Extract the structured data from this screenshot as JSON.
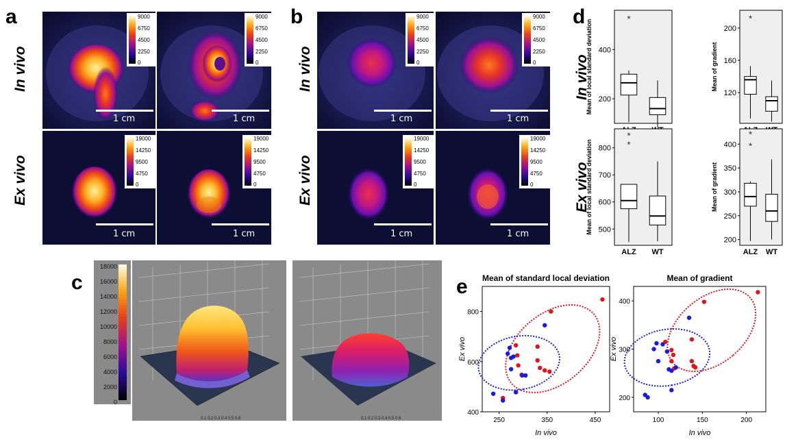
{
  "panel_labels": {
    "a": "a",
    "b": "b",
    "c": "c",
    "d": "d",
    "e": "e"
  },
  "row_labels": {
    "in_vivo": "In vivo",
    "ex_vivo": "Ex vivo"
  },
  "scale_bar": "1 cm",
  "colorbar_in_vivo": [
    "9000",
    "6750",
    "4500",
    "2250",
    "0"
  ],
  "colorbar_ex_vivo": [
    "19000",
    "14250",
    "9500",
    "4750",
    "0"
  ],
  "colorbar_3d": [
    "18000",
    "16000",
    "14000",
    "12000",
    "10000",
    "8000",
    "6000",
    "4000",
    "2000",
    "0"
  ],
  "colors": {
    "alz": "#e0141c",
    "wt": "#1a1ae0",
    "panel_bg": "#838383"
  },
  "chart_data": [
    {
      "type": "box",
      "panel": "d",
      "row": "In vivo",
      "ylabel": "Mean of local standard deviation",
      "categories": [
        "ALZ",
        "WT"
      ],
      "ylim": [
        100,
        560
      ],
      "yticks": [
        200,
        400
      ],
      "boxes": [
        {
          "name": "ALZ",
          "whisker_low": 105,
          "q1": 215,
          "median": 265,
          "q3": 300,
          "whisker_high": 315,
          "outliers": [
            530
          ]
        },
        {
          "name": "WT",
          "whisker_low": 85,
          "q1": 135,
          "median": 160,
          "q3": 205,
          "whisker_high": 275,
          "outliers": []
        }
      ]
    },
    {
      "type": "box",
      "panel": "d",
      "row": "In vivo",
      "ylabel": "Mean of gradient",
      "categories": [
        "ALZ",
        "WT"
      ],
      "ylim": [
        82,
        222
      ],
      "yticks": [
        120,
        160,
        200
      ],
      "boxes": [
        {
          "name": "ALZ",
          "whisker_low": 88,
          "q1": 118,
          "median": 136,
          "q3": 140,
          "whisker_high": 153,
          "outliers": [
            213
          ]
        },
        {
          "name": "WT",
          "whisker_low": 84,
          "q1": 97,
          "median": 110,
          "q3": 115,
          "whisker_high": 135,
          "outliers": []
        }
      ]
    },
    {
      "type": "box",
      "panel": "d",
      "row": "Ex vivo",
      "ylabel": "Mean of local standard deviation",
      "categories": [
        "ALZ",
        "WT"
      ],
      "ylim": [
        440,
        870
      ],
      "yticks": [
        500,
        600,
        700,
        800
      ],
      "boxes": [
        {
          "name": "ALZ",
          "whisker_low": 452,
          "q1": 575,
          "median": 605,
          "q3": 665,
          "whisker_high": 665,
          "outliers": [
            815,
            848
          ]
        },
        {
          "name": "WT",
          "whisker_low": 455,
          "q1": 515,
          "median": 548,
          "q3": 622,
          "whisker_high": 750,
          "outliers": []
        }
      ]
    },
    {
      "type": "box",
      "panel": "d",
      "row": "Ex vivo",
      "ylabel": "Mean of gradient",
      "categories": [
        "ALZ",
        "WT"
      ],
      "ylim": [
        188,
        432
      ],
      "yticks": [
        200,
        250,
        300,
        350,
        400
      ],
      "boxes": [
        {
          "name": "ALZ",
          "whisker_low": 197,
          "q1": 270,
          "median": 290,
          "q3": 318,
          "whisker_high": 322,
          "outliers": [
            398,
            423
          ]
        },
        {
          "name": "WT",
          "whisker_low": 200,
          "q1": 238,
          "median": 260,
          "q3": 295,
          "whisker_high": 368,
          "outliers": []
        }
      ]
    },
    {
      "type": "scatter",
      "panel": "e",
      "title": "Mean of standard local deviation",
      "xlabel": "In vivo",
      "ylabel": "Ex vivo",
      "xlim": [
        215,
        480
      ],
      "ylim": [
        400,
        900
      ],
      "xticks": [
        250,
        350,
        450
      ],
      "yticks": [
        400,
        600,
        800
      ],
      "series": [
        {
          "name": "ALZ",
          "points": [
            [
              258,
              455
            ],
            [
              285,
              665
            ],
            [
              288,
              625
            ],
            [
              290,
              585
            ],
            [
              297,
              548
            ],
            [
              330,
              605
            ],
            [
              335,
              575
            ],
            [
              345,
              565
            ],
            [
              355,
              560
            ],
            [
              358,
              800
            ],
            [
              330,
              660
            ],
            [
              465,
              848
            ]
          ]
        },
        {
          "name": "WT",
          "points": [
            [
              238,
              472
            ],
            [
              258,
              445
            ],
            [
              268,
              632
            ],
            [
              272,
              655
            ],
            [
              275,
              615
            ],
            [
              280,
              620
            ],
            [
              285,
              478
            ],
            [
              298,
              545
            ],
            [
              305,
              545
            ],
            [
              345,
              745
            ],
            [
              275,
              570
            ]
          ]
        }
      ]
    },
    {
      "type": "scatter",
      "panel": "e",
      "title": "Mean of gradient",
      "xlabel": "In vivo",
      "ylabel": "Ex vivo",
      "xlim": [
        72,
        222
      ],
      "ylim": [
        170,
        430
      ],
      "xticks": [
        100,
        150,
        200
      ],
      "yticks": [
        200,
        300,
        400
      ],
      "series": [
        {
          "name": "ALZ",
          "points": [
            [
              108,
              315
            ],
            [
              110,
              295
            ],
            [
              115,
              298
            ],
            [
              115,
              275
            ],
            [
              117,
              288
            ],
            [
              138,
              320
            ],
            [
              138,
              275
            ],
            [
              140,
              265
            ],
            [
              142,
              262
            ],
            [
              152,
              398
            ],
            [
              213,
              418
            ],
            [
              118,
              260
            ]
          ]
        },
        {
          "name": "WT",
          "points": [
            [
              85,
              205
            ],
            [
              88,
              200
            ],
            [
              95,
              300
            ],
            [
              98,
              312
            ],
            [
              100,
              275
            ],
            [
              105,
              310
            ],
            [
              110,
              295
            ],
            [
              112,
              258
            ],
            [
              115,
              255
            ],
            [
              115,
              215
            ],
            [
              135,
              365
            ],
            [
              120,
              262
            ]
          ]
        }
      ]
    }
  ]
}
